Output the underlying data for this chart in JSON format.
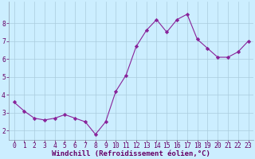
{
  "x": [
    0,
    1,
    2,
    3,
    4,
    5,
    6,
    7,
    8,
    9,
    10,
    11,
    12,
    13,
    14,
    15,
    16,
    17,
    18,
    19,
    20,
    21,
    22,
    23
  ],
  "y": [
    3.6,
    3.1,
    2.7,
    2.6,
    2.7,
    2.9,
    2.7,
    2.5,
    1.8,
    2.5,
    4.2,
    5.1,
    6.7,
    7.6,
    8.2,
    7.5,
    8.2,
    8.5,
    7.1,
    6.6,
    6.1,
    6.1,
    6.4,
    7.0
  ],
  "line_color": "#882299",
  "marker": "D",
  "marker_size": 2.2,
  "bg_color": "#cceeff",
  "grid_color": "#aaccdd",
  "xlabel": "Windchill (Refroidissement éolien,°C)",
  "xlabel_color": "#660066",
  "xlabel_fontsize": 6.5,
  "tick_color": "#660066",
  "tick_fontsize": 5.8,
  "ylim": [
    1.5,
    9.2
  ],
  "yticks": [
    2,
    3,
    4,
    5,
    6,
    7,
    8
  ],
  "xlim": [
    -0.5,
    23.5
  ],
  "xticks": [
    0,
    1,
    2,
    3,
    4,
    5,
    6,
    7,
    8,
    9,
    10,
    11,
    12,
    13,
    14,
    15,
    16,
    17,
    18,
    19,
    20,
    21,
    22,
    23
  ]
}
